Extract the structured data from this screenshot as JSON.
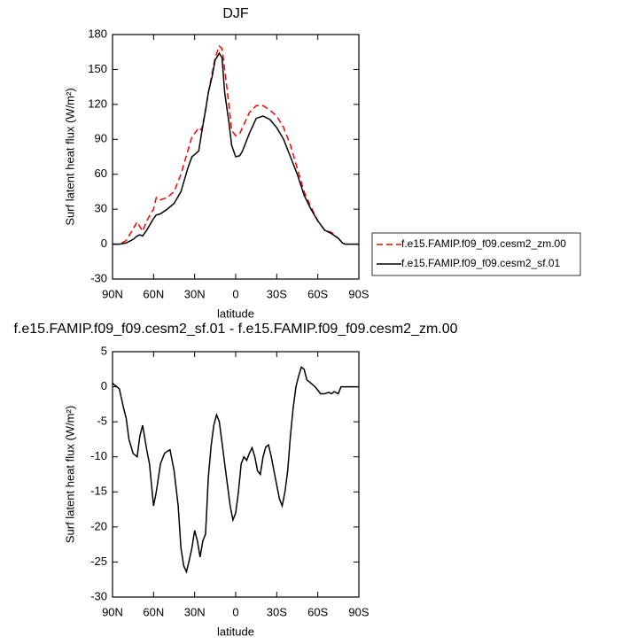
{
  "chart_data": [
    {
      "type": "line",
      "title": "DJF",
      "xlabel": "latitude",
      "ylabel": "Surf latent heat flux (W/m²)",
      "xlim": [
        90,
        -90
      ],
      "xticks": [
        {
          "value": 90,
          "label": "90N"
        },
        {
          "value": 60,
          "label": "60N"
        },
        {
          "value": 30,
          "label": "30N"
        },
        0,
        {
          "value": -30,
          "label": "30S"
        },
        {
          "value": -60,
          "label": "60S"
        },
        {
          "value": -90,
          "label": "90S"
        }
      ],
      "ylim": [
        -30,
        180
      ],
      "yticks": [
        -30,
        0,
        30,
        60,
        90,
        120,
        150,
        180
      ],
      "legend": "right",
      "x": [
        90,
        85,
        80,
        75,
        72,
        70,
        68,
        65,
        60,
        58,
        55,
        50,
        45,
        40,
        35,
        32,
        30,
        27,
        25,
        22,
        20,
        17,
        15,
        12,
        10,
        8,
        5,
        3,
        0,
        -3,
        -5,
        -10,
        -15,
        -20,
        -25,
        -30,
        -35,
        -40,
        -45,
        -50,
        -55,
        -60,
        -65,
        -70,
        -75,
        -78,
        -80,
        -85,
        -90
      ],
      "series": [
        {
          "name": "f.e15.FAMIP.f09_f09.cesm2_zm.00",
          "color": "#ff0000",
          "dash": true,
          "values": [
            0,
            0,
            3,
            13,
            19,
            15,
            11,
            20,
            30,
            40,
            38,
            40,
            45,
            60,
            80,
            92,
            95,
            100,
            98,
            115,
            130,
            148,
            160,
            170,
            168,
            150,
            120,
            98,
            93,
            95,
            100,
            113,
            119,
            119,
            115,
            110,
            100,
            85,
            65,
            45,
            32,
            20,
            12,
            10,
            5,
            1,
            0,
            0,
            0
          ]
        },
        {
          "name": "f.e15.FAMIP.f09_f09.cesm2_sf.01",
          "color": "#000000",
          "dash": false,
          "values": [
            0,
            0,
            1,
            4,
            7,
            8,
            7,
            12,
            22,
            25,
            26,
            30,
            35,
            45,
            65,
            75,
            77,
            80,
            95,
            115,
            130,
            145,
            158,
            164,
            160,
            130,
            105,
            85,
            75,
            76,
            80,
            95,
            108,
            110,
            107,
            100,
            90,
            75,
            60,
            42,
            30,
            20,
            12,
            9,
            5,
            1,
            0,
            0,
            0
          ]
        }
      ]
    },
    {
      "type": "line",
      "title": "f.e15.FAMIP.f09_f09.cesm2_sf.01 - f.e15.FAMIP.f09_f09.cesm2_zm.00",
      "xlabel": "latitude",
      "ylabel": "Surf latent heat flux (W/m²)",
      "xlim": [
        90,
        -90
      ],
      "xticks": [
        {
          "value": 90,
          "label": "90N"
        },
        {
          "value": 60,
          "label": "60N"
        },
        {
          "value": 30,
          "label": "30N"
        },
        0,
        {
          "value": -30,
          "label": "30S"
        },
        {
          "value": -60,
          "label": "60S"
        },
        {
          "value": -90,
          "label": "90S"
        }
      ],
      "ylim": [
        -30,
        5
      ],
      "yticks": [
        -30,
        -25,
        -20,
        -15,
        -10,
        -5,
        0,
        5
      ],
      "color": "#000000",
      "x": [
        90,
        85,
        82,
        80,
        78,
        75,
        72,
        70,
        68,
        65,
        63,
        60,
        58,
        55,
        52,
        50,
        48,
        45,
        42,
        40,
        38,
        36,
        34,
        32,
        30,
        28,
        26,
        24,
        22,
        20,
        18,
        16,
        14,
        12,
        10,
        8,
        6,
        4,
        2,
        0,
        -2,
        -4,
        -6,
        -8,
        -10,
        -12,
        -14,
        -16,
        -18,
        -20,
        -22,
        -24,
        -26,
        -28,
        -30,
        -32,
        -34,
        -36,
        -38,
        -40,
        -42,
        -44,
        -46,
        -48,
        -50,
        -52,
        -55,
        -58,
        -60,
        -62,
        -65,
        -68,
        -70,
        -72,
        -75,
        -77,
        -80,
        -85,
        -90
      ],
      "values": [
        0.5,
        -0.3,
        -3,
        -4.5,
        -7.5,
        -9.5,
        -10,
        -7,
        -5.5,
        -9,
        -11,
        -17,
        -15,
        -11,
        -9.5,
        -9.2,
        -9,
        -12,
        -17,
        -23,
        -25.5,
        -26.4,
        -24.8,
        -23,
        -20.5,
        -22,
        -24.3,
        -22,
        -21,
        -13,
        -8.5,
        -5.5,
        -4,
        -5,
        -8,
        -11,
        -14,
        -17,
        -19,
        -18,
        -15,
        -11,
        -10,
        -10.5,
        -9.5,
        -8.7,
        -10,
        -12,
        -12.5,
        -10,
        -8.6,
        -8.3,
        -10,
        -12,
        -14,
        -16,
        -17,
        -15,
        -12,
        -7,
        -3,
        0,
        1.5,
        2.8,
        2.5,
        1,
        0.5,
        0,
        -0.5,
        -1,
        -1,
        -0.8,
        -1,
        -0.7,
        -1,
        0,
        0,
        0,
        0
      ]
    }
  ]
}
